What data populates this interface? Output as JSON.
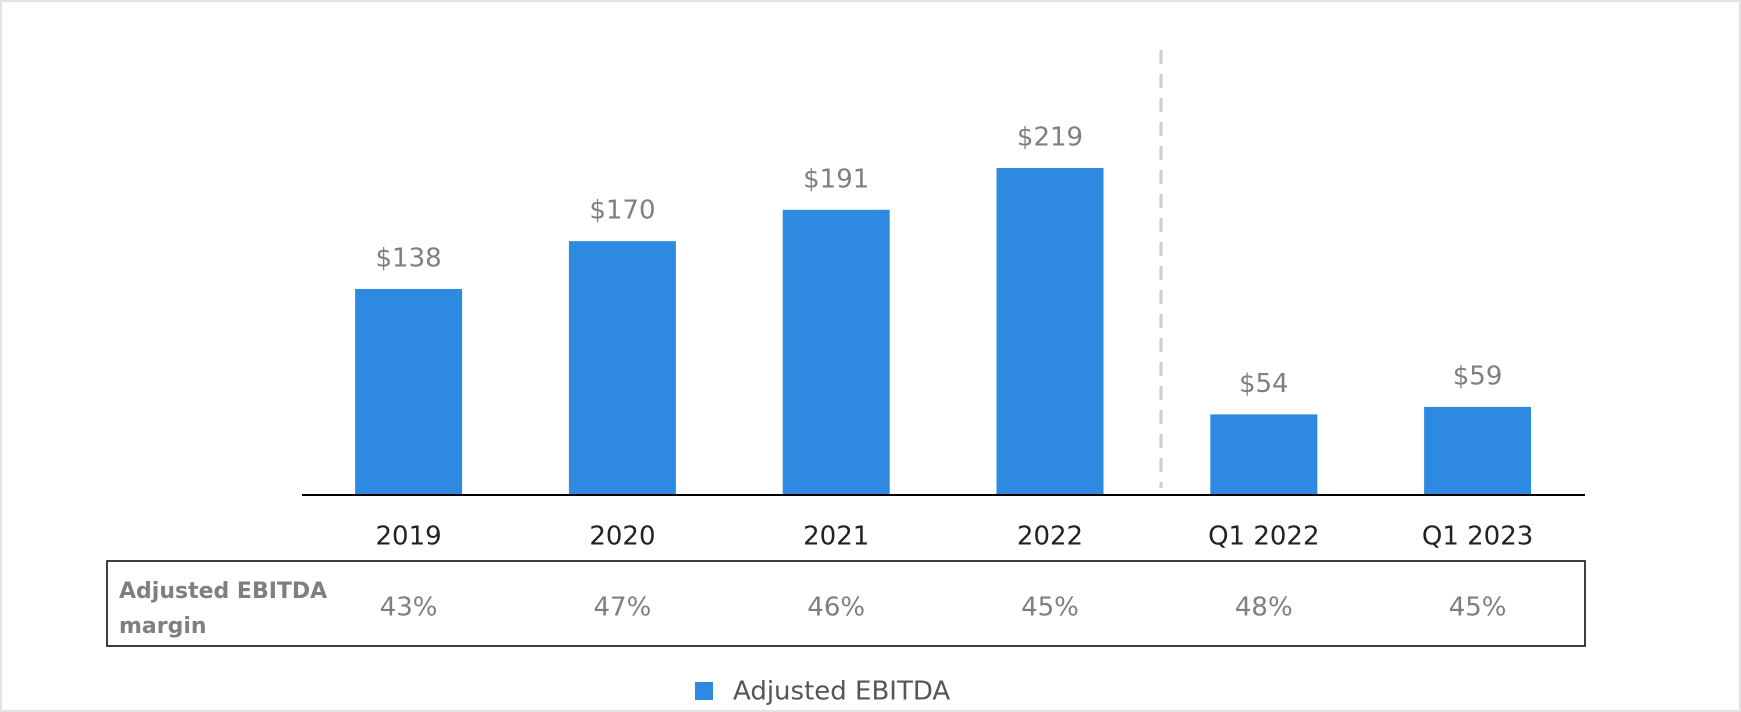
{
  "chart_data": {
    "type": "bar",
    "categories": [
      "2019",
      "2020",
      "2021",
      "2022",
      "Q1 2022",
      "Q1 2023"
    ],
    "series": [
      {
        "name": "Adjusted EBITDA",
        "color": "#2e8ae0",
        "values": [
          138,
          170,
          191,
          219,
          54,
          59
        ],
        "value_labels": [
          "$138",
          "$170",
          "$191",
          "$219",
          "$54",
          "$59"
        ]
      }
    ],
    "margin_row": {
      "label_lines": [
        "Adjusted EBITDA",
        "margin"
      ],
      "values": [
        "43%",
        "47%",
        "46%",
        "45%",
        "48%",
        "45%"
      ]
    }
  }
}
